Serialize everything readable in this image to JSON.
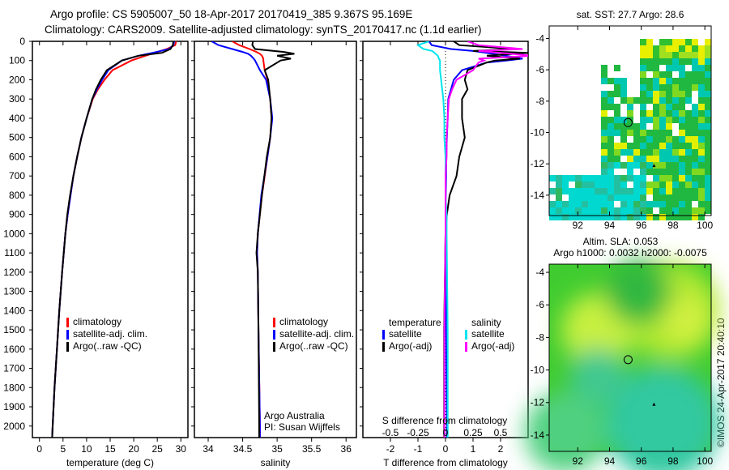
{
  "title_line1": "Argo profile: CS 5905007_50 18-Apr-2017 20170419_385 9.367S 95.169E",
  "title_line2": "Climatology: CARS2009. Satellite-adjusted climatology: synTS_20170417.nc (1.1d earlier)",
  "credit": "©IMOS 24-Apr-2017 20:40:10",
  "colors": {
    "climatology": "#ff0000",
    "satellite": "#0000ff",
    "argo": "#000000",
    "s_satellite": "#00e5ee",
    "s_argo": "#ff00ff"
  },
  "chart_data": [
    {
      "type": "line",
      "id": "temperature",
      "xlabel": "temperature (deg C)",
      "ylabel": "",
      "xlim": [
        -1.5,
        31.5
      ],
      "ylim": [
        2060,
        0
      ],
      "xticks": [
        0,
        5,
        10,
        15,
        20,
        25,
        30
      ],
      "yticks": [
        0,
        100,
        200,
        300,
        400,
        500,
        600,
        700,
        800,
        900,
        1000,
        1100,
        1200,
        1300,
        1400,
        1500,
        1600,
        1700,
        1800,
        1900,
        2000
      ],
      "legend": [
        "climatology",
        "satellite-adj. clim.",
        "Argo(..raw -QC)"
      ],
      "depth": [
        0,
        20,
        40,
        60,
        75,
        100,
        150,
        200,
        250,
        300,
        400,
        500,
        600,
        700,
        800,
        900,
        1000,
        1200,
        1400,
        1600,
        1800,
        2000,
        2060
      ],
      "series": [
        {
          "name": "climatology",
          "color": "climatology",
          "values": [
            29,
            28.8,
            27,
            24.5,
            22.5,
            19.5,
            15.5,
            13.8,
            12.4,
            11.3,
            10,
            8.9,
            8,
            7.2,
            6.6,
            6,
            5.5,
            4.8,
            4.2,
            3.7,
            3.2,
            2.8,
            2.7
          ]
        },
        {
          "name": "satellite-adj. clim.",
          "color": "satellite",
          "values": [
            28.6,
            28.4,
            27.5,
            24,
            21,
            17.5,
            14.6,
            13.3,
            12.2,
            11.2,
            10,
            8.9,
            8,
            7.2,
            6.6,
            6,
            5.5,
            4.8,
            4.2,
            3.7,
            3.2,
            2.8,
            2.7
          ]
        },
        {
          "name": "Argo(..raw -QC)",
          "color": "argo",
          "values": [
            28.4,
            28.3,
            27.8,
            26,
            21,
            17.5,
            14.3,
            13,
            12,
            11.2,
            10,
            8.9,
            8,
            7.2,
            6.5,
            5.9,
            5.5,
            4.8,
            4.2,
            3.7,
            3.2,
            2.8,
            2.7
          ]
        }
      ]
    },
    {
      "type": "line",
      "id": "salinity",
      "xlabel": "salinity",
      "xlim": [
        33.8,
        36.15
      ],
      "ylim": [
        2060,
        0
      ],
      "xticks": [
        34,
        34.5,
        35,
        35.5,
        36
      ],
      "legend": [
        "climatology",
        "satellite-adj. clim.",
        "Argo(..raw -QC)"
      ],
      "annotation": [
        "Argo Australia",
        "PI: Susan Wijffels"
      ],
      "depth": [
        0,
        20,
        40,
        55,
        65,
        75,
        90,
        100,
        150,
        200,
        300,
        400,
        500,
        600,
        800,
        1000,
        1100,
        1200,
        1500,
        2000,
        2060
      ],
      "series": [
        {
          "name": "climatology",
          "color": "climatology",
          "values": [
            34.35,
            34.45,
            34.6,
            34.7,
            34.75,
            34.78,
            34.8,
            34.8,
            34.82,
            34.86,
            34.9,
            34.92,
            34.9,
            34.86,
            34.78,
            34.72,
            34.71,
            34.72,
            34.73,
            34.75,
            34.75
          ]
        },
        {
          "name": "satellite-adj. clim.",
          "color": "satellite",
          "values": [
            34.05,
            34.15,
            34.35,
            34.5,
            34.58,
            34.62,
            34.66,
            34.68,
            34.75,
            34.84,
            34.9,
            34.93,
            34.9,
            34.86,
            34.77,
            34.72,
            34.71,
            34.72,
            34.73,
            34.75,
            34.75
          ]
        },
        {
          "name": "Argo(..raw -QC)",
          "color": "argo",
          "values": [
            34.65,
            34.64,
            34.68,
            35.1,
            35.25,
            35.0,
            35.2,
            35.05,
            34.82,
            34.87,
            34.9,
            34.92,
            34.9,
            34.85,
            34.78,
            34.72,
            34.7,
            34.72,
            34.73,
            34.74,
            34.74
          ]
        }
      ]
    },
    {
      "type": "line",
      "id": "difference",
      "xlabel": "T difference from climatology",
      "xlabel2": "S difference from climatology",
      "xlim": [
        -3,
        3
      ],
      "xlim2": [
        -0.75,
        0.75
      ],
      "ylim": [
        2060,
        0
      ],
      "xticks": [
        -2,
        -1,
        0,
        1,
        2
      ],
      "xticks2": [
        -0.5,
        -0.25,
        0,
        0.25,
        0.5
      ],
      "legend_t": {
        "title": "temperature",
        "items": [
          "satellite",
          "Argo(-adj)"
        ]
      },
      "legend_s": {
        "title": "salinity",
        "items": [
          "satellite",
          "Argo(-adj)"
        ]
      },
      "depth": [
        0,
        20,
        40,
        50,
        60,
        75,
        90,
        100,
        110,
        150,
        200,
        250,
        300,
        400,
        500,
        600,
        700,
        800,
        900,
        1000,
        1500,
        2000,
        2060
      ],
      "series": [
        {
          "name": "T satellite",
          "axis": "T",
          "color": "satellite",
          "values": [
            -0.6,
            -0.5,
            0.2,
            1,
            1.5,
            2.2,
            2.8,
            2.2,
            1.5,
            0.6,
            0.3,
            0.2,
            0.1,
            0.08,
            0.05,
            0.03,
            0.02,
            0.01,
            0,
            0,
            0.02,
            0.05,
            0.05
          ]
        },
        {
          "name": "T Argo(-adj)",
          "axis": "T",
          "color": "argo",
          "values": [
            0.3,
            0.5,
            2.5,
            1,
            3,
            1.5,
            2.7,
            1.8,
            1.5,
            0.8,
            0.7,
            0.8,
            0.6,
            0.6,
            0.7,
            0.5,
            0.4,
            0.15,
            0.05,
            0,
            -0.05,
            -0.05,
            -0.05
          ]
        },
        {
          "name": "S satellite",
          "axis": "S",
          "color": "s_satellite",
          "values": [
            -0.15,
            -0.25,
            -0.2,
            -0.12,
            -0.1,
            -0.07,
            -0.06,
            -0.05,
            -0.05,
            -0.05,
            -0.04,
            -0.03,
            -0.02,
            -0.01,
            -0.01,
            0,
            0,
            0,
            0.01,
            0.01,
            0.02,
            0.02,
            0.02
          ]
        },
        {
          "name": "S Argo(-adj)",
          "axis": "S",
          "color": "s_argo",
          "values": [
            0.2,
            0.3,
            0.7,
            0.3,
            0.5,
            0.8,
            0.3,
            0.35,
            0.3,
            0.25,
            0.1,
            0.06,
            0.03,
            0.02,
            0.01,
            0.01,
            0,
            0,
            0,
            0,
            -0.01,
            -0.01,
            -0.01
          ]
        }
      ]
    },
    {
      "type": "heatmap",
      "id": "sst_map",
      "title": "sat. SST: 27.7  Argo: 28.6",
      "xlim": [
        90.2,
        100.4
      ],
      "ylim": [
        -15.3,
        -3.2
      ],
      "xticks": [
        92,
        94,
        96,
        98,
        100
      ],
      "yticks": [
        -4,
        -6,
        -8,
        -10,
        -12,
        -14
      ],
      "argo_position": [
        95.169,
        -9.367
      ],
      "marker": [
        96.8,
        -12.1
      ]
    },
    {
      "type": "heatmap",
      "id": "sla_map",
      "title": "Altim. SLA: 0.053",
      "subtitle": "Argo h1000: 0.0032 h2000: -0.0075",
      "xlim": [
        90.2,
        100.4
      ],
      "ylim": [
        -15,
        -3.5
      ],
      "xticks": [
        92,
        94,
        96,
        98,
        100
      ],
      "yticks": [
        -4,
        -6,
        -8,
        -10,
        -12,
        -14
      ],
      "argo_position": [
        95.169,
        -9.367
      ],
      "marker": [
        96.8,
        -12.1
      ]
    }
  ]
}
